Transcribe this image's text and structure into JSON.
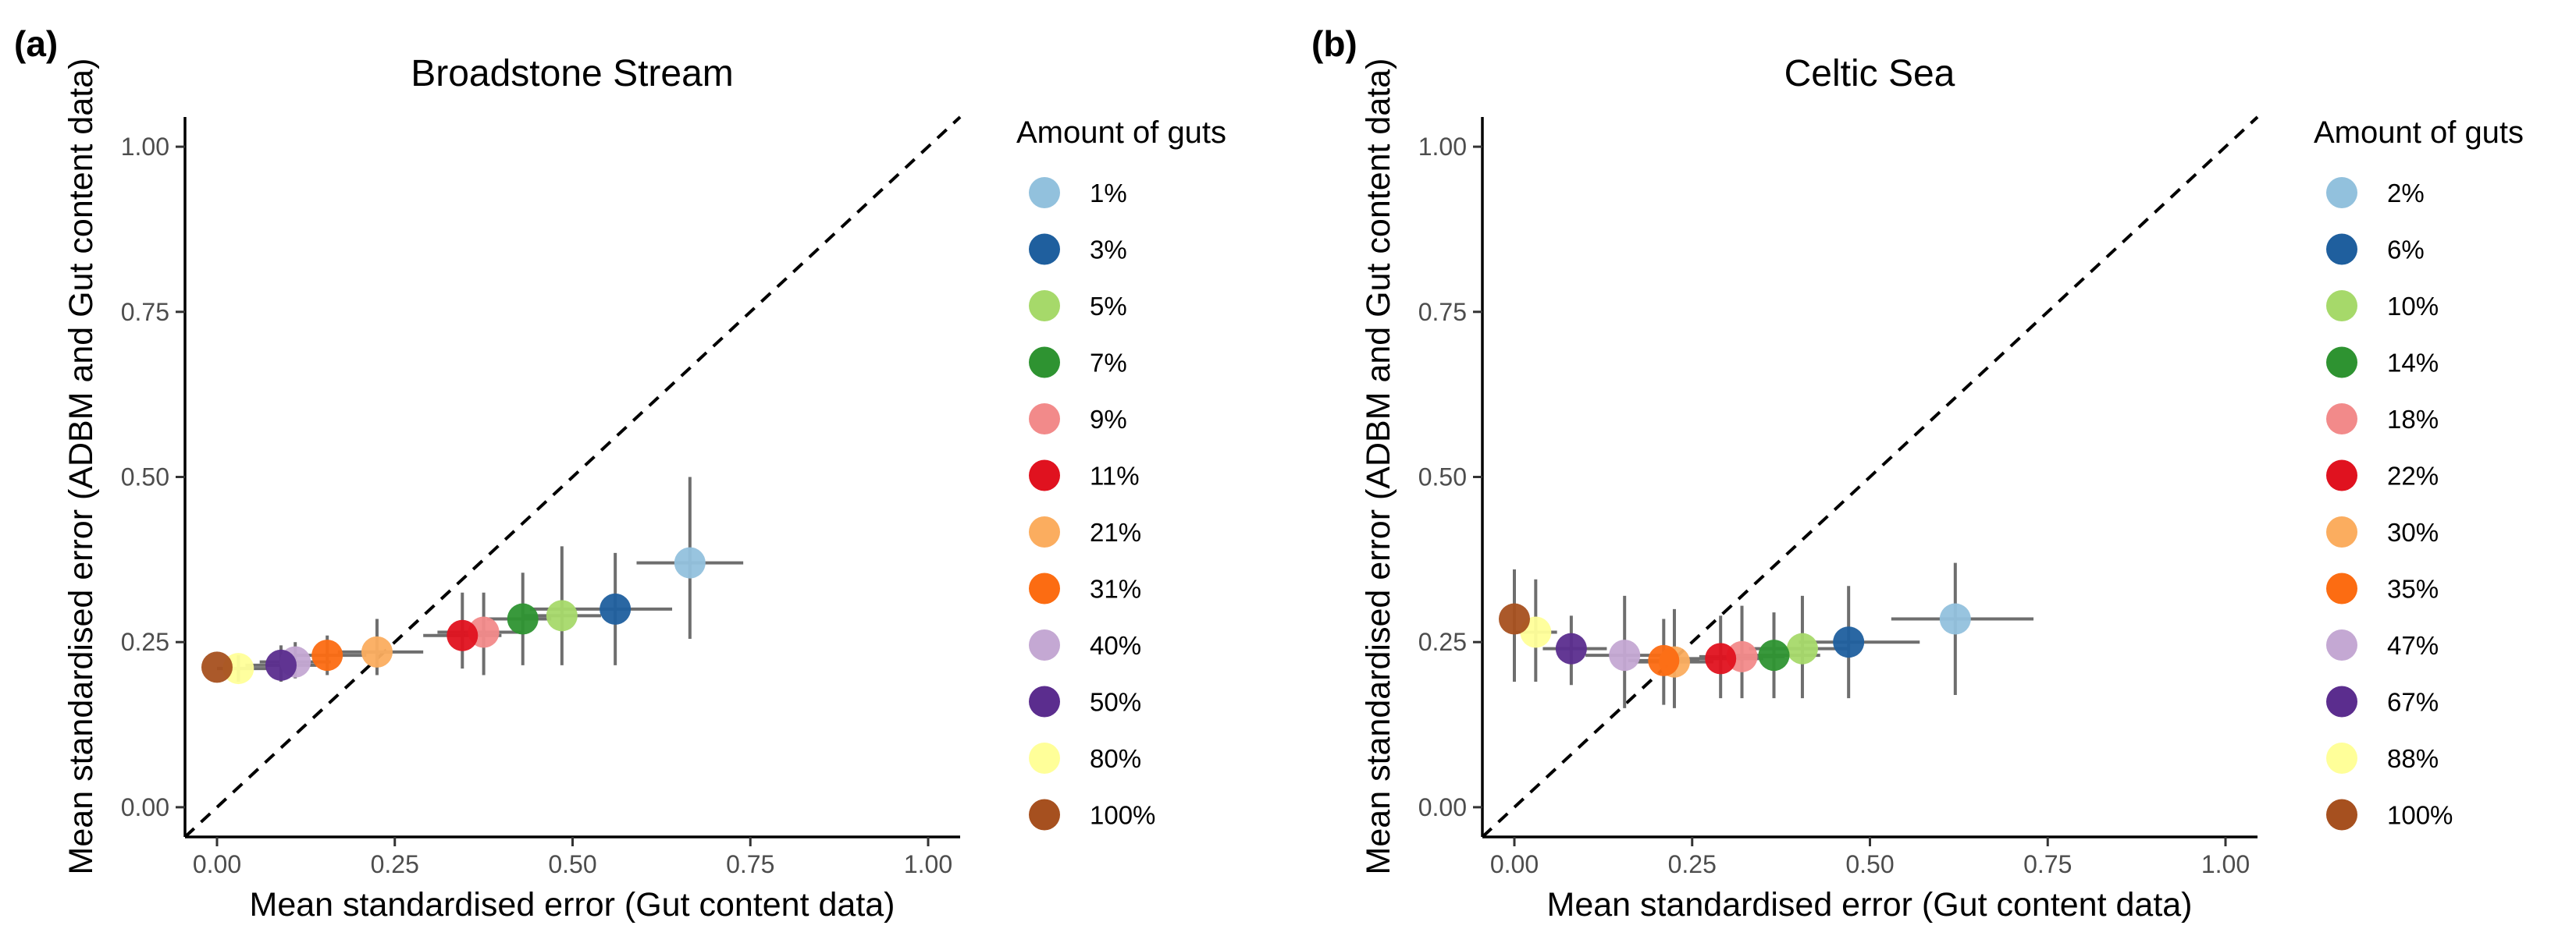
{
  "chart_data": [
    {
      "type": "scatter",
      "panel_label": "(a)",
      "title": "Broadstone Stream",
      "xlabel": "Mean standardised error (Gut content data)",
      "ylabel": "Mean standardised error (ADBM and Gut content data)",
      "xlim": [
        -0.045,
        1.045
      ],
      "ylim": [
        -0.045,
        1.045
      ],
      "x_ticks": [
        "0.00",
        "0.25",
        "0.50",
        "0.75",
        "1.00"
      ],
      "y_ticks": [
        "0.00",
        "0.25",
        "0.50",
        "0.75",
        "1.00"
      ],
      "reference_line": "y = x (dashed)",
      "legend_title": "Amount of guts",
      "legend_position": "right",
      "points": [
        {
          "label": "1%",
          "color": "#92c1dd",
          "x": 0.665,
          "y": 0.37,
          "xerr": [
            0.59,
            0.74
          ],
          "yerr": [
            0.255,
            0.5
          ]
        },
        {
          "label": "3%",
          "color": "#1f5f9e",
          "x": 0.56,
          "y": 0.3,
          "xerr": [
            0.44,
            0.64
          ],
          "yerr": [
            0.215,
            0.385
          ]
        },
        {
          "label": "5%",
          "color": "#a6d96a",
          "x": 0.485,
          "y": 0.29,
          "xerr": [
            0.43,
            0.54
          ],
          "yerr": [
            0.215,
            0.395
          ]
        },
        {
          "label": "7%",
          "color": "#2e9331",
          "x": 0.43,
          "y": 0.285,
          "xerr": [
            0.38,
            0.47
          ],
          "yerr": [
            0.215,
            0.355
          ]
        },
        {
          "label": "9%",
          "color": "#f28a8a",
          "x": 0.375,
          "y": 0.265,
          "xerr": [
            0.31,
            0.43
          ],
          "yerr": [
            0.2,
            0.325
          ]
        },
        {
          "label": "11%",
          "color": "#e0121f",
          "x": 0.345,
          "y": 0.26,
          "xerr": [
            0.29,
            0.4
          ],
          "yerr": [
            0.21,
            0.325
          ]
        },
        {
          "label": "21%",
          "color": "#fbad5f",
          "x": 0.225,
          "y": 0.235,
          "xerr": [
            0.17,
            0.29
          ],
          "yerr": [
            0.2,
            0.285
          ]
        },
        {
          "label": "31%",
          "color": "#fc6c12",
          "x": 0.155,
          "y": 0.23,
          "xerr": [
            0.11,
            0.21
          ],
          "yerr": [
            0.2,
            0.26
          ]
        },
        {
          "label": "40%",
          "color": "#c4a8d3",
          "x": 0.11,
          "y": 0.22,
          "xerr": [
            0.06,
            0.16
          ],
          "yerr": [
            0.195,
            0.25
          ]
        },
        {
          "label": "50%",
          "color": "#5b2d8e",
          "x": 0.09,
          "y": 0.215,
          "xerr": [
            0.04,
            0.14
          ],
          "yerr": [
            0.19,
            0.245
          ]
        },
        {
          "label": "80%",
          "color": "#ffff99",
          "x": 0.03,
          "y": 0.21,
          "xerr": [
            0.0,
            0.07
          ],
          "yerr": [
            0.19,
            0.23
          ]
        },
        {
          "label": "100%",
          "color": "#a6501f",
          "x": 0.0,
          "y": 0.212,
          "xerr": [
            0.0,
            0.0
          ],
          "yerr": [
            0.212,
            0.212
          ]
        }
      ]
    },
    {
      "type": "scatter",
      "panel_label": "(b)",
      "title": "Celtic Sea",
      "xlabel": "Mean standardised error (Gut content data)",
      "ylabel": "Mean standardised error (ADBM and Gut content data)",
      "xlim": [
        -0.045,
        1.045
      ],
      "ylim": [
        -0.045,
        1.045
      ],
      "x_ticks": [
        "0.00",
        "0.25",
        "0.50",
        "0.75",
        "1.00"
      ],
      "y_ticks": [
        "0.00",
        "0.25",
        "0.50",
        "0.75",
        "1.00"
      ],
      "reference_line": "y = x (dashed)",
      "legend_title": "Amount of guts",
      "legend_position": "right",
      "points": [
        {
          "label": "2%",
          "color": "#92c1dd",
          "x": 0.62,
          "y": 0.285,
          "xerr": [
            0.53,
            0.73
          ],
          "yerr": [
            0.17,
            0.37
          ]
        },
        {
          "label": "6%",
          "color": "#1f5f9e",
          "x": 0.47,
          "y": 0.25,
          "xerr": [
            0.4,
            0.57
          ],
          "yerr": [
            0.165,
            0.335
          ]
        },
        {
          "label": "10%",
          "color": "#a6d96a",
          "x": 0.405,
          "y": 0.24,
          "xerr": [
            0.33,
            0.47
          ],
          "yerr": [
            0.165,
            0.32
          ]
        },
        {
          "label": "14%",
          "color": "#2e9331",
          "x": 0.365,
          "y": 0.23,
          "xerr": [
            0.3,
            0.43
          ],
          "yerr": [
            0.165,
            0.295
          ]
        },
        {
          "label": "18%",
          "color": "#f28a8a",
          "x": 0.32,
          "y": 0.228,
          "xerr": [
            0.26,
            0.38
          ],
          "yerr": [
            0.165,
            0.305
          ]
        },
        {
          "label": "22%",
          "color": "#e0121f",
          "x": 0.29,
          "y": 0.225,
          "xerr": [
            0.23,
            0.35
          ],
          "yerr": [
            0.165,
            0.29
          ]
        },
        {
          "label": "30%",
          "color": "#fbad5f",
          "x": 0.225,
          "y": 0.22,
          "xerr": [
            0.17,
            0.28
          ],
          "yerr": [
            0.15,
            0.3
          ]
        },
        {
          "label": "35%",
          "color": "#fc6c12",
          "x": 0.21,
          "y": 0.222,
          "xerr": [
            0.16,
            0.26
          ],
          "yerr": [
            0.155,
            0.285
          ]
        },
        {
          "label": "47%",
          "color": "#c4a8d3",
          "x": 0.155,
          "y": 0.23,
          "xerr": [
            0.1,
            0.21
          ],
          "yerr": [
            0.15,
            0.32
          ]
        },
        {
          "label": "67%",
          "color": "#5b2d8e",
          "x": 0.08,
          "y": 0.24,
          "xerr": [
            0.04,
            0.13
          ],
          "yerr": [
            0.185,
            0.29
          ]
        },
        {
          "label": "88%",
          "color": "#ffff99",
          "x": 0.03,
          "y": 0.265,
          "xerr": [
            0.0,
            0.06
          ],
          "yerr": [
            0.19,
            0.345
          ]
        },
        {
          "label": "100%",
          "color": "#a6501f",
          "x": 0.0,
          "y": 0.285,
          "xerr": [
            0.0,
            0.0
          ],
          "yerr": [
            0.19,
            0.36
          ]
        }
      ]
    }
  ]
}
